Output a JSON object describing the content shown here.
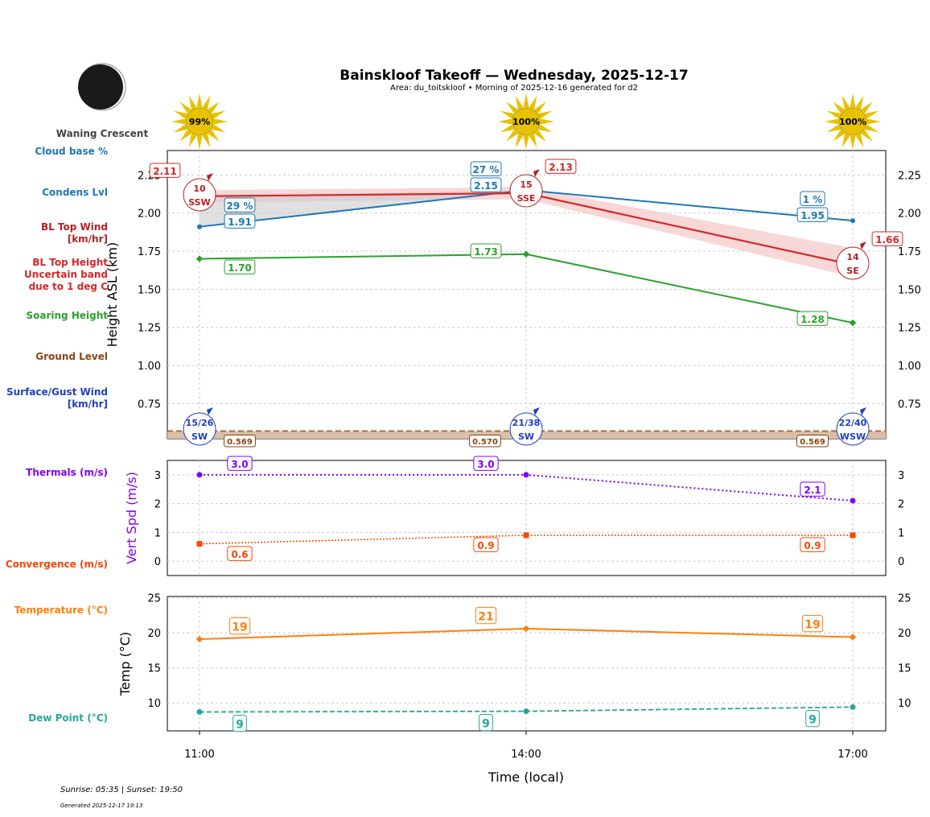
{
  "header": {
    "title": "Bainskloof Takeoff — Wednesday, 2025-12-17",
    "subtitle": "Area: du_toitskloof • Morning of 2025-12-16 generated for d2",
    "moon_phase": "Waning Crescent"
  },
  "footer": {
    "sun": "Sunrise: 05:35 | Sunset: 19:50",
    "generated": "Generated 2025-12-17 19:13"
  },
  "side_labels": {
    "cloud": "Cloud base %",
    "condens": "Condens Lvl",
    "bl_wind": [
      "BL Top Wind",
      "[km/hr]"
    ],
    "bl_top": [
      "BL Top Height",
      "Uncertain band",
      "due to 1 deg C"
    ],
    "soaring": "Soaring Height",
    "ground": "Ground Level",
    "surface": [
      "Surface/Gust Wind",
      "[km/hr]"
    ],
    "thermals": "Thermals (m/s)",
    "convergence": "Convergence (m/s)",
    "temperature": "Temperature (°C)",
    "dew": "Dew Point (°C)"
  },
  "colors": {
    "condens": "#1f77b4",
    "bl_top": "#d62728",
    "bl_wind": "#b22222",
    "soaring": "#2ca02c",
    "ground": "#8b4513",
    "surface": "#1f3fbf",
    "thermals": "#8000ff",
    "convergence": "#ff4500",
    "temperature": "#ff7f0e",
    "dew": "#26a69a"
  },
  "chart_data": [
    {
      "type": "line",
      "ylabel": "Height ASL (km)",
      "ylim": [
        0.52,
        2.41
      ],
      "yticks": [
        "0.75",
        "1.00",
        "1.25",
        "1.50",
        "1.75",
        "2.00",
        "2.25"
      ],
      "grid": true,
      "x": [
        "11:00",
        "14:00",
        "17:00"
      ],
      "sun_percent": [
        "99%",
        "100%",
        "100%"
      ],
      "series": [
        {
          "key": "condens",
          "values": [
            1.91,
            2.15,
            1.95
          ],
          "labels": [
            "1.91",
            "2.15",
            "1.95"
          ],
          "cloud_percent": [
            "29 %",
            "27 %",
            "1 %"
          ]
        },
        {
          "key": "bl_top",
          "values": [
            2.11,
            2.13,
            1.66
          ],
          "band_low": [
            2.07,
            2.09,
            1.58
          ],
          "band_high": [
            2.15,
            2.17,
            1.77
          ],
          "labels": [
            "2.11",
            "2.13",
            "1.66"
          ]
        },
        {
          "key": "bl_wind",
          "speed": [
            "10",
            "15",
            "14"
          ],
          "direction": [
            "SSW",
            "SSE",
            "SE"
          ]
        },
        {
          "key": "soaring",
          "values": [
            1.7,
            1.73,
            1.28
          ],
          "labels": [
            "1.70",
            "1.73",
            "1.28"
          ]
        },
        {
          "key": "ground",
          "values": [
            0.569,
            0.57,
            0.569
          ],
          "labels": [
            "0.569",
            "0.570",
            "0.569"
          ]
        },
        {
          "key": "surface",
          "speed_gust": [
            "15/26",
            "21/38",
            "22/40"
          ],
          "direction": [
            "SW",
            "SW",
            "WSW"
          ]
        }
      ]
    },
    {
      "type": "line",
      "ylabel": "Vert Spd (m/s)",
      "ylim": [
        -0.5,
        3.5
      ],
      "yticks": [
        "0",
        "1",
        "2",
        "3"
      ],
      "grid": true,
      "x": [
        "11:00",
        "14:00",
        "17:00"
      ],
      "series": [
        {
          "key": "thermals",
          "values": [
            3.0,
            3.0,
            2.1
          ],
          "labels": [
            "3.0",
            "3.0",
            "2.1"
          ]
        },
        {
          "key": "convergence",
          "values": [
            0.6,
            0.9,
            0.9
          ],
          "labels": [
            "0.6",
            "0.9",
            "0.9"
          ]
        }
      ]
    },
    {
      "type": "line",
      "ylabel": "Temp (°C)",
      "xlabel": "Time (local)",
      "ylim": [
        6,
        25.2
      ],
      "yticks": [
        "10",
        "15",
        "20",
        "25"
      ],
      "grid": true,
      "x": [
        "11:00",
        "14:00",
        "17:00"
      ],
      "series": [
        {
          "key": "temperature",
          "values": [
            19.1,
            20.6,
            19.4
          ],
          "labels": [
            "19",
            "21",
            "19"
          ]
        },
        {
          "key": "dew",
          "values": [
            8.7,
            8.8,
            9.4
          ],
          "labels": [
            "9",
            "9",
            "9"
          ]
        }
      ]
    }
  ]
}
